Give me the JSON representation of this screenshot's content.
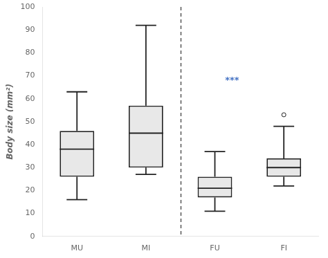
{
  "chart_data": {
    "type": "box",
    "boxes": [
      {
        "whislo": 16,
        "q1": 26,
        "med": 38,
        "q3": 46,
        "whishi": 63,
        "fliers": []
      },
      {
        "whislo": 27,
        "q1": 30,
        "med": 45,
        "q3": 57,
        "whishi": 92,
        "fliers": []
      },
      {
        "whislo": 11,
        "q1": 17,
        "med": 21,
        "q3": 26,
        "whishi": 37,
        "fliers": []
      },
      {
        "whislo": 22,
        "q1": 26,
        "med": 30,
        "q3": 34,
        "whishi": 48,
        "fliers": [
          53
        ]
      }
    ],
    "color": "#e8e8e8",
    "edge_color": "#222222",
    "ylabel": "Body size (mm²)",
    "xlim": [
      0.5,
      4.5
    ],
    "xticks": [
      {
        "value": 1,
        "label": "MU"
      },
      {
        "value": 2,
        "label": "MI"
      },
      {
        "value": 3,
        "label": "FU"
      },
      {
        "value": 4,
        "label": "FI"
      }
    ],
    "ylim": [
      0,
      100
    ],
    "yticks": [
      0,
      10,
      20,
      30,
      40,
      50,
      60,
      70,
      80,
      90,
      100
    ],
    "grid": false,
    "vlines": [
      2.5
    ],
    "annotations": [
      {
        "text": "***",
        "x": 3.25,
        "y": 68,
        "color": "#4472c4"
      }
    ]
  }
}
